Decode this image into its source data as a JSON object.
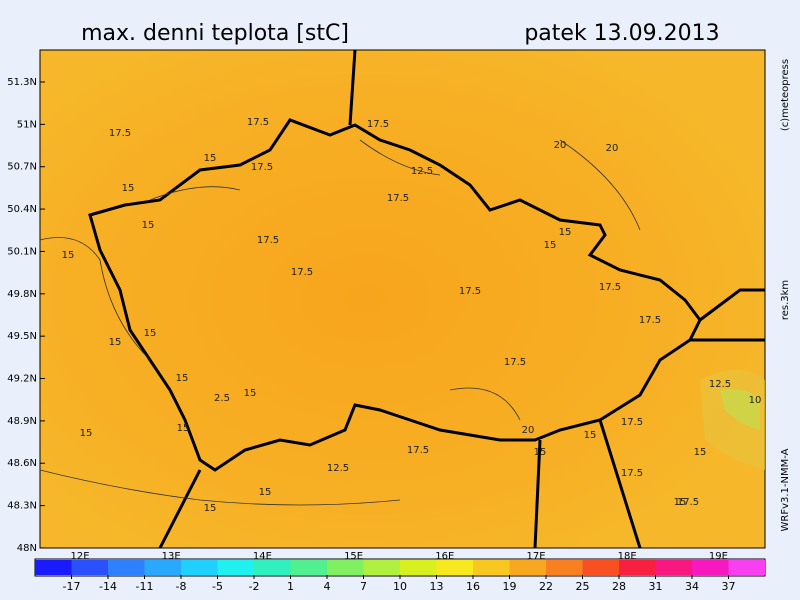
{
  "header": {
    "title": "max. denni teplota [stC]",
    "date": "patek 13.09.2013"
  },
  "map": {
    "lat_labels": [
      "51.3N",
      "51N",
      "50.7N",
      "50.4N",
      "50.1N",
      "49.8N",
      "49.5N",
      "49.2N",
      "48.9N",
      "48.6N",
      "48.3N",
      "48N"
    ],
    "lon_labels": [
      "12E",
      "13E",
      "14E",
      "15E",
      "16E",
      "17E",
      "18E",
      "19E"
    ],
    "contour_labels": [
      "17.5",
      "17.5",
      "17.5",
      "15",
      "15",
      "15",
      "17.5",
      "12.5",
      "17.5",
      "17.5",
      "17.5",
      "20",
      "20",
      "15",
      "17.5",
      "17.5",
      "17.5",
      "15",
      "15",
      "15",
      "15",
      "15",
      "2.5",
      "15",
      "15",
      "12.5",
      "17.5",
      "15",
      "15",
      "20",
      "15",
      "17.5",
      "17.5",
      "12.5",
      "10",
      "15",
      "17.5",
      "15",
      "15",
      "15",
      "17.5"
    ],
    "side_texts": [
      "(c)meteopress",
      "res.3km",
      "WRFv3.1-NMM-A"
    ]
  },
  "colorbar": {
    "ticks": [
      -17,
      -14,
      -11,
      -8,
      -5,
      -2,
      1,
      4,
      7,
      10,
      13,
      16,
      19,
      22,
      25,
      28,
      31,
      34,
      37
    ],
    "colors": [
      "#1a1aff",
      "#2a50ff",
      "#2d80ff",
      "#28a8ff",
      "#20d0ff",
      "#20f0f0",
      "#30f0c0",
      "#50f090",
      "#80f060",
      "#b0f040",
      "#d8f020",
      "#f8e820",
      "#f8c820",
      "#f8a820",
      "#f88020",
      "#f85020",
      "#f82040",
      "#f81880",
      "#f818c0",
      "#f840f0"
    ]
  }
}
